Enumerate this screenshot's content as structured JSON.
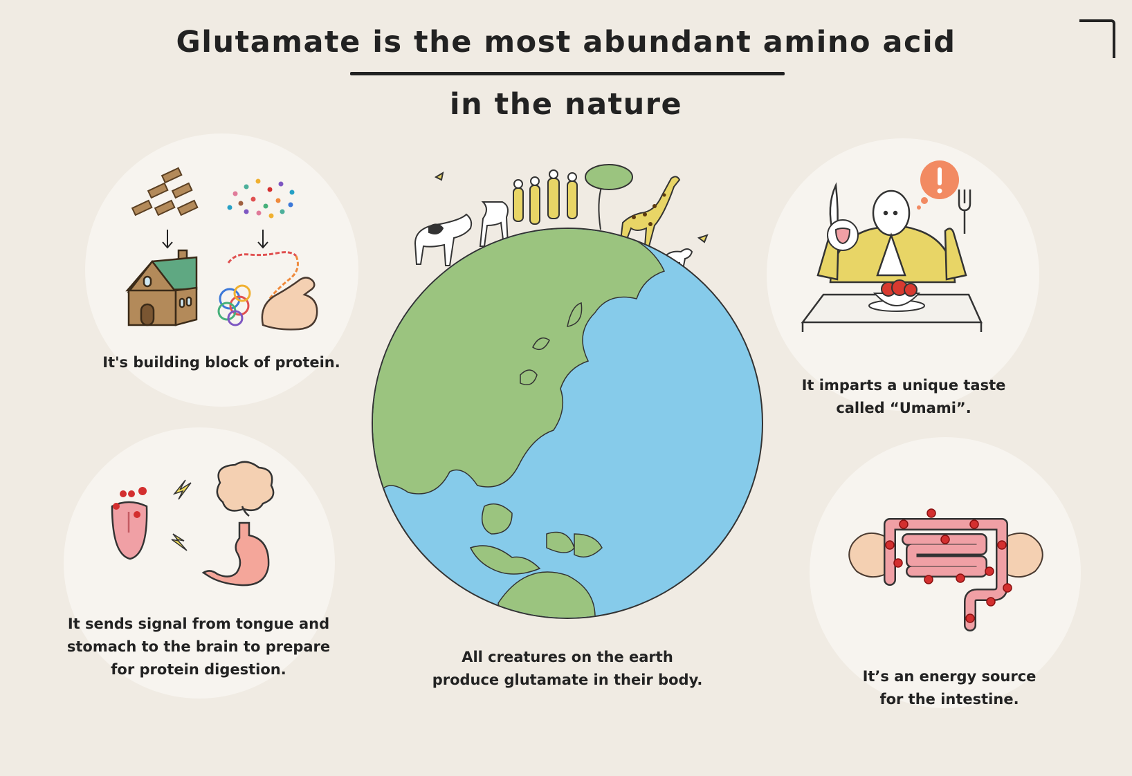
{
  "title": {
    "line1": "Glutamate is the most abundant amino acid",
    "line2": "in the nature"
  },
  "captions": {
    "protein": [
      "It's building  block  of protein."
    ],
    "umami": [
      "It imparts  a unique  taste",
      "called “Umami”."
    ],
    "signal": [
      "It sends signal from  tongue and",
      "stomach to the brain  to prepare",
      "for protein digestion."
    ],
    "earth": [
      "All creatures on the earth",
      "produce glutamate in their body."
    ],
    "energy": [
      "It’s an energy source",
      "for the intestine."
    ]
  },
  "colors": {
    "background": "#f0ebe3",
    "bubble": "#f7f4ef",
    "ocean": "#86cbea",
    "land": "#9bc47f",
    "accent_red": "#d32f2f",
    "yellow": "#e8d566",
    "pink": "#f0a0a5"
  },
  "icons": {
    "corner": "corner-bracket-icon",
    "globe": "globe-icon",
    "exclamation": "exclamation-icon"
  }
}
